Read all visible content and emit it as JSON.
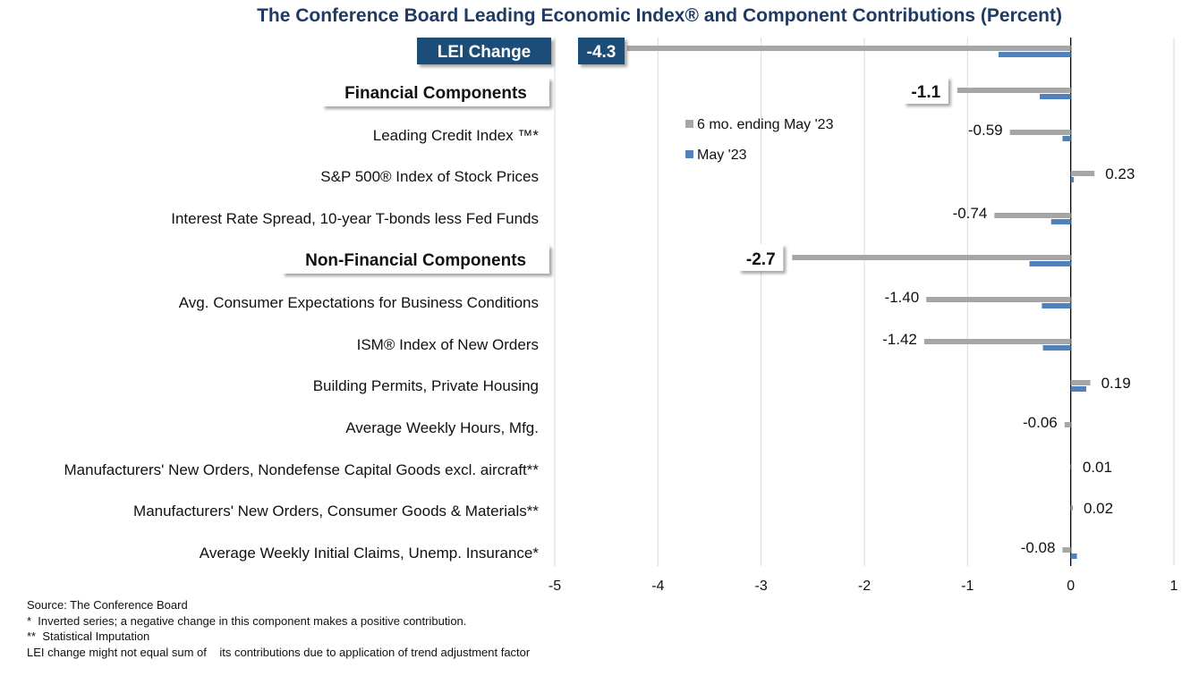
{
  "title": "The Conference Board Leading Economic Index® and Component Contributions (Percent)",
  "chart_data": {
    "type": "bar",
    "orientation": "horizontal",
    "title": "The Conference Board Leading Economic Index® and Component Contributions (Percent)",
    "xlim": [
      -5,
      1
    ],
    "x_ticks": [
      -5,
      -4,
      -3,
      -2,
      -1,
      0,
      1
    ],
    "x_tick_labels": [
      "-5",
      "-4",
      "-3",
      "-2",
      "-1",
      "0",
      "1"
    ],
    "grid": "vertical",
    "legend_placement": "top-center",
    "series": [
      {
        "name": "6 mo. ending May '23",
        "color": "#a6a6a6"
      },
      {
        "name": "May '23",
        "color": "#4f81bd"
      }
    ],
    "rows": [
      {
        "label": "LEI Change",
        "kind": "lei",
        "six_month": -4.3,
        "month": -0.7,
        "value_label": "-4.3"
      },
      {
        "label": "Financial Components",
        "kind": "section",
        "six_month": -1.1,
        "month": -0.3,
        "value_label": "-1.1"
      },
      {
        "label": "Leading Credit Index ™*",
        "kind": "component",
        "six_month": -0.59,
        "month": -0.08,
        "value_label": "-0.59"
      },
      {
        "label": "S&P 500® Index of Stock Prices",
        "kind": "component",
        "six_month": 0.23,
        "month": 0.03,
        "value_label": "0.23"
      },
      {
        "label": "Interest Rate Spread, 10-year T-bonds less Fed Funds",
        "kind": "component",
        "six_month": -0.74,
        "month": -0.19,
        "value_label": "-0.74"
      },
      {
        "label": "Non-Financial Components",
        "kind": "section",
        "six_month": -2.7,
        "month": -0.4,
        "value_label": "-2.7"
      },
      {
        "label": "Avg. Consumer Expectations for Business Conditions",
        "kind": "component",
        "six_month": -1.4,
        "month": -0.28,
        "value_label": "-1.40"
      },
      {
        "label": "ISM® Index of New Orders",
        "kind": "component",
        "six_month": -1.42,
        "month": -0.27,
        "value_label": "-1.42"
      },
      {
        "label": "Building Permits, Private Housing",
        "kind": "component",
        "six_month": 0.19,
        "month": 0.15,
        "value_label": "0.19"
      },
      {
        "label": "Average Weekly Hours, Mfg.",
        "kind": "component",
        "six_month": -0.06,
        "month": 0.0,
        "value_label": "-0.06"
      },
      {
        "label": "Manufacturers' New Orders, Nondefense Capital Goods excl. aircraft**",
        "kind": "component",
        "six_month": 0.01,
        "month": 0.0,
        "value_label": "0.01"
      },
      {
        "label": "Manufacturers' New Orders, Consumer Goods & Materials**",
        "kind": "component",
        "six_month": 0.02,
        "month": 0.0,
        "value_label": "0.02"
      },
      {
        "label": "Average Weekly Initial Claims, Unemp. Insurance*",
        "kind": "component",
        "six_month": -0.08,
        "month": 0.06,
        "value_label": "-0.08"
      }
    ]
  },
  "footnotes": [
    "Source: The Conference Board",
    "*  Inverted series; a negative change in this component makes a positive contribution.",
    "**  Statistical Imputation",
    "LEI change might not equal sum of    its contributions due to application of trend adjustment factor"
  ]
}
